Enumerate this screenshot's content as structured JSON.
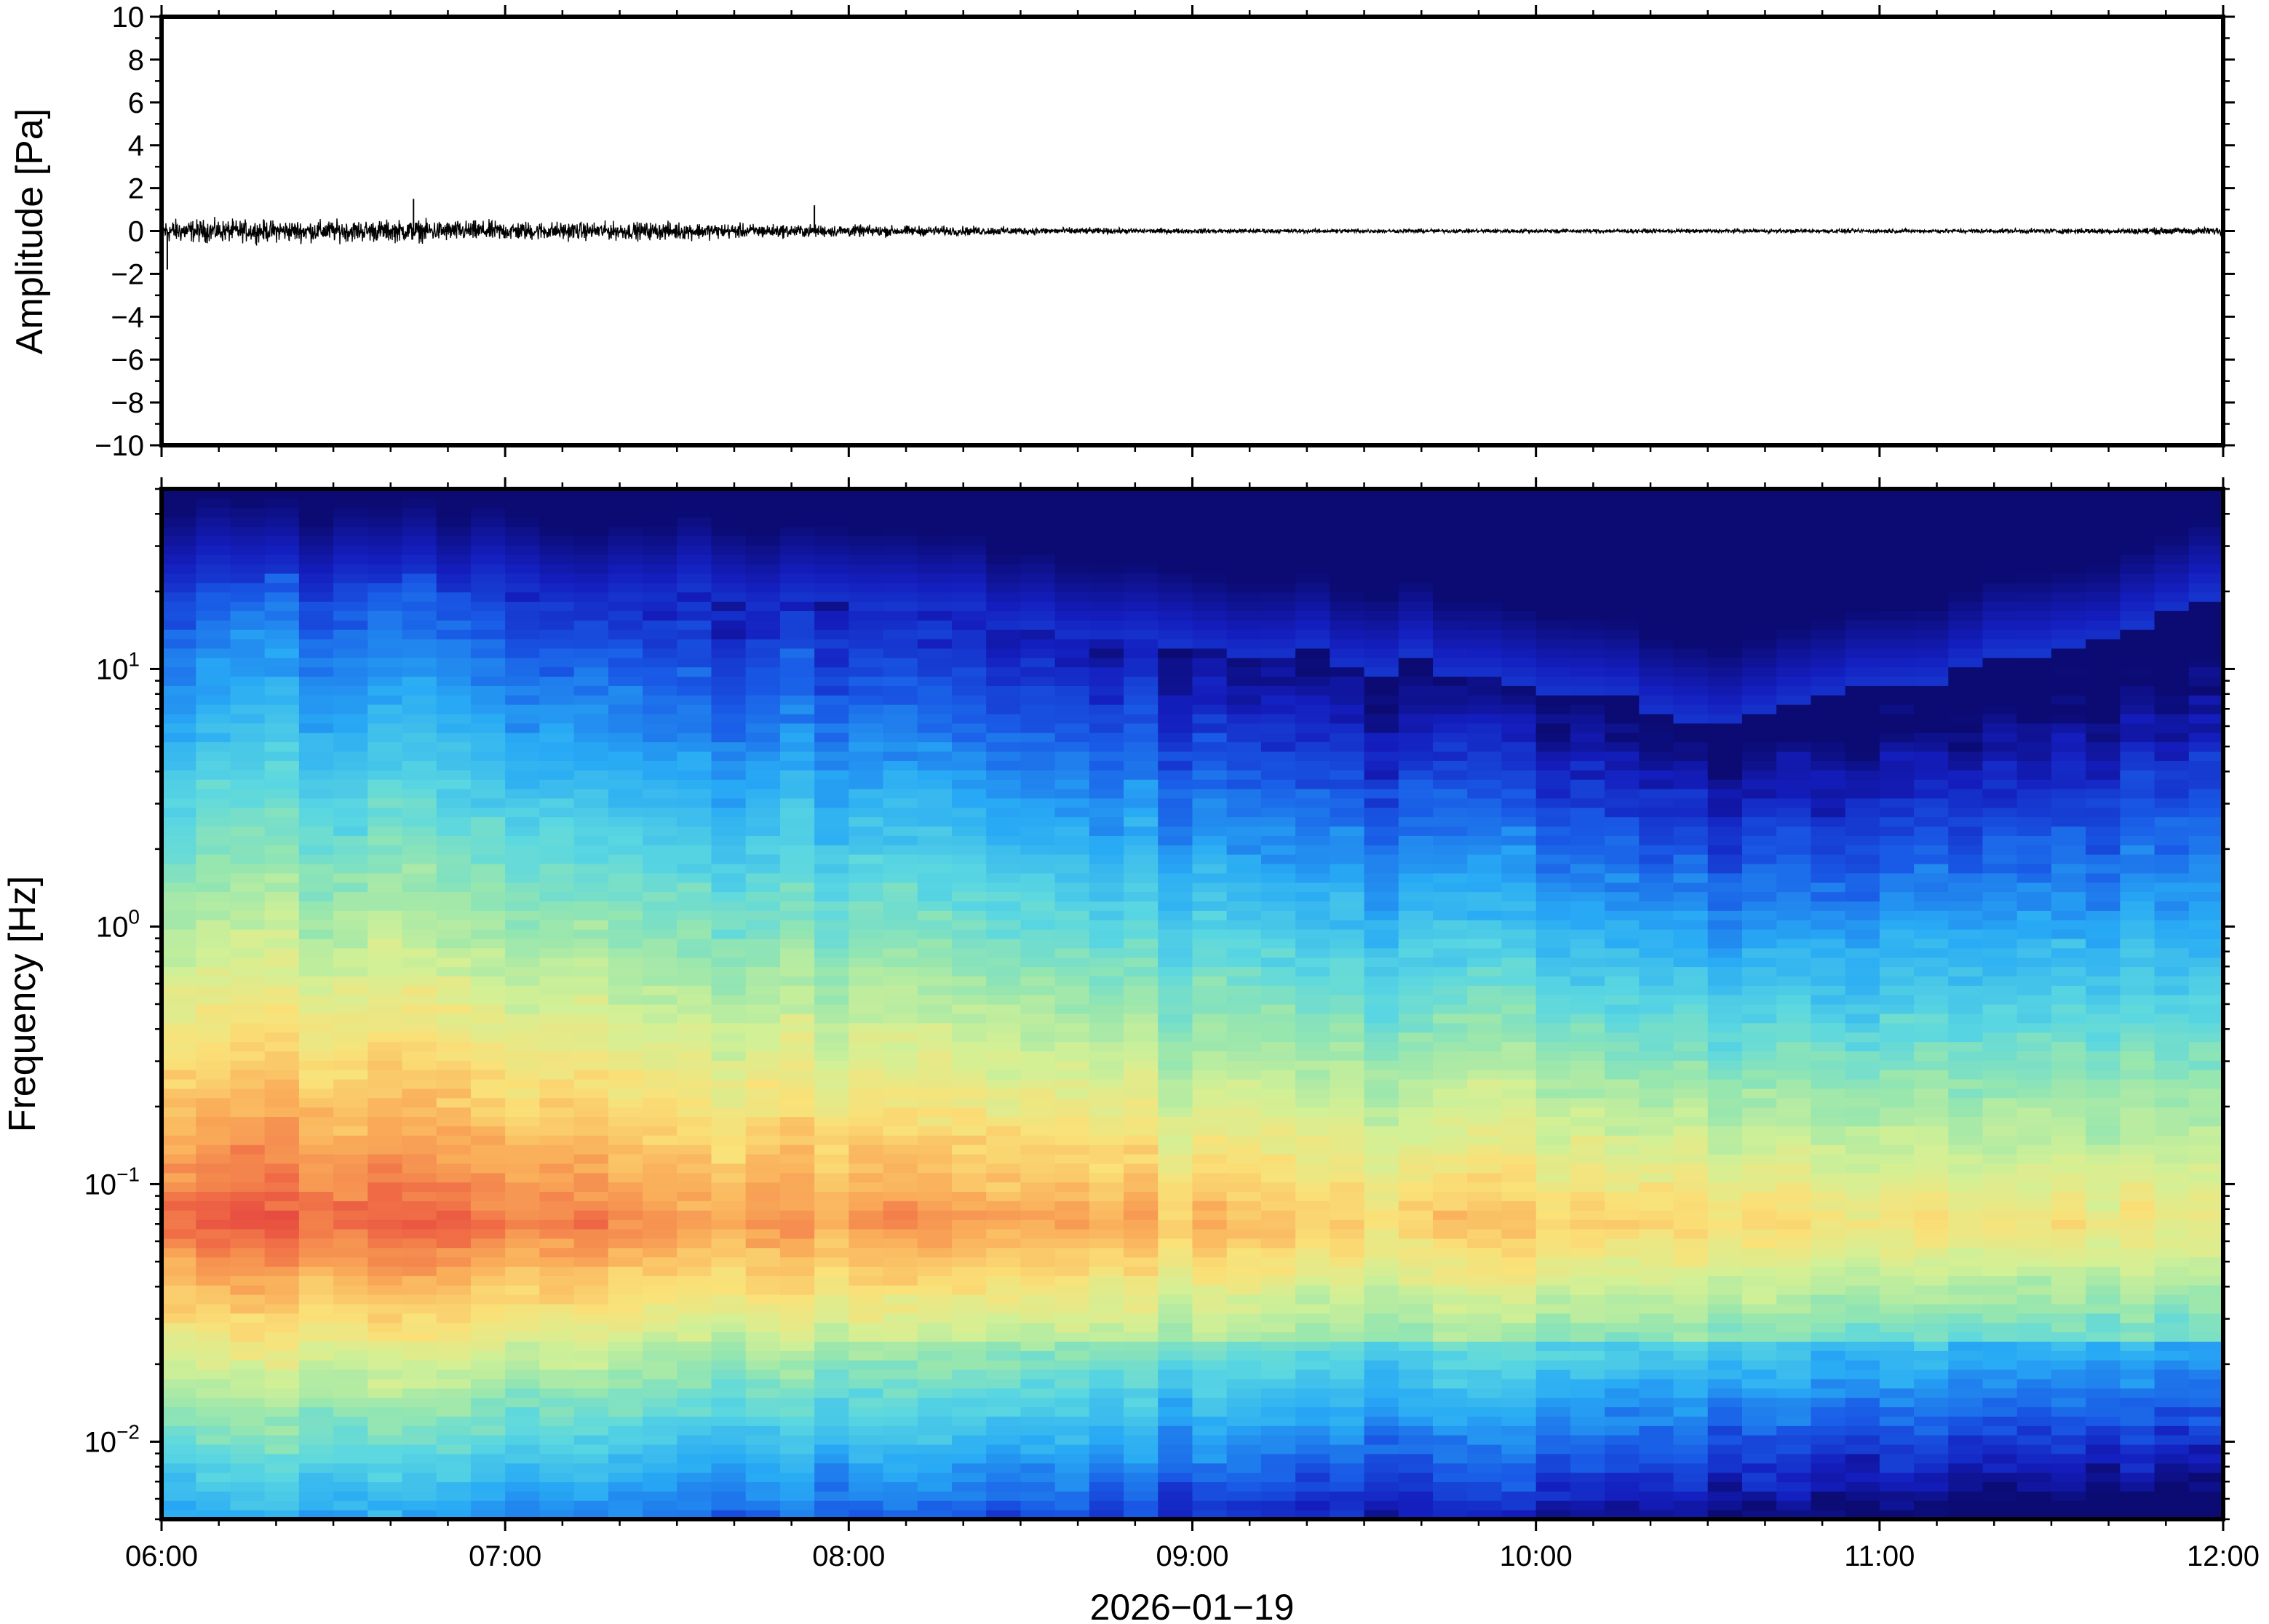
{
  "chart_data": [
    {
      "type": "line",
      "panel": "waveform",
      "ylabel": "Amplitude [Pa]",
      "ylim": [
        -10,
        10
      ],
      "ytick_labels": [
        "10",
        "8",
        "6",
        "4",
        "2",
        "0",
        "−2",
        "−4",
        "−6",
        "−8",
        "−10"
      ],
      "ytick_values": [
        10,
        8,
        6,
        4,
        2,
        0,
        -2,
        -4,
        -6,
        -8,
        -10
      ],
      "x_range": [
        "06:00",
        "12:00"
      ],
      "envelope": {
        "time_hours": [
          6.0,
          6.25,
          6.5,
          6.75,
          7.0,
          7.25,
          7.5,
          7.75,
          8.0,
          8.25,
          8.5,
          8.75,
          9.0,
          9.5,
          10.0,
          10.5,
          11.0,
          11.5,
          12.0
        ],
        "half_amplitude_pa": [
          0.6,
          0.55,
          0.55,
          0.55,
          0.5,
          0.45,
          0.45,
          0.35,
          0.3,
          0.25,
          0.2,
          0.15,
          0.12,
          0.1,
          0.1,
          0.1,
          0.1,
          0.12,
          0.2
        ]
      },
      "peaks": [
        {
          "time": "06:01",
          "value": -1.8
        },
        {
          "time": "06:44",
          "value": 1.5
        },
        {
          "time": "07:54",
          "value": 1.2
        }
      ],
      "colors": {
        "line": "#000000"
      }
    },
    {
      "type": "heatmap",
      "panel": "spectrogram",
      "ylabel": "Frequency [Hz]",
      "yscale": "log",
      "ylim_hz": [
        0.005,
        50
      ],
      "ytick_values": [
        0.01,
        0.1,
        1,
        10
      ],
      "ytick_labels": [
        {
          "base": "10",
          "exp": "−2"
        },
        {
          "base": "10",
          "exp": "−1"
        },
        {
          "base": "10",
          "exp": "0"
        },
        {
          "base": "10",
          "exp": "1"
        }
      ],
      "colormap": "jet",
      "time_columns": 60,
      "description_levels": {
        "start_time_boundary_hz_by_hour": [
          [
            6,
            22
          ],
          [
            7,
            20
          ],
          [
            8,
            18
          ],
          [
            9,
            12
          ],
          [
            10,
            9
          ],
          [
            10.5,
            6
          ],
          [
            11,
            8
          ],
          [
            12,
            18
          ]
        ]
      },
      "colors": {
        "top_dark": "#0b0b73",
        "hot": "#e8413c",
        "cool": "#2aa3f0"
      }
    }
  ],
  "x_axis": {
    "tick_labels": [
      "06:00",
      "07:00",
      "08:00",
      "09:00",
      "10:00",
      "11:00",
      "12:00"
    ],
    "tick_hours": [
      6,
      7,
      8,
      9,
      10,
      11,
      12
    ],
    "date_label": "2026−01−19"
  }
}
